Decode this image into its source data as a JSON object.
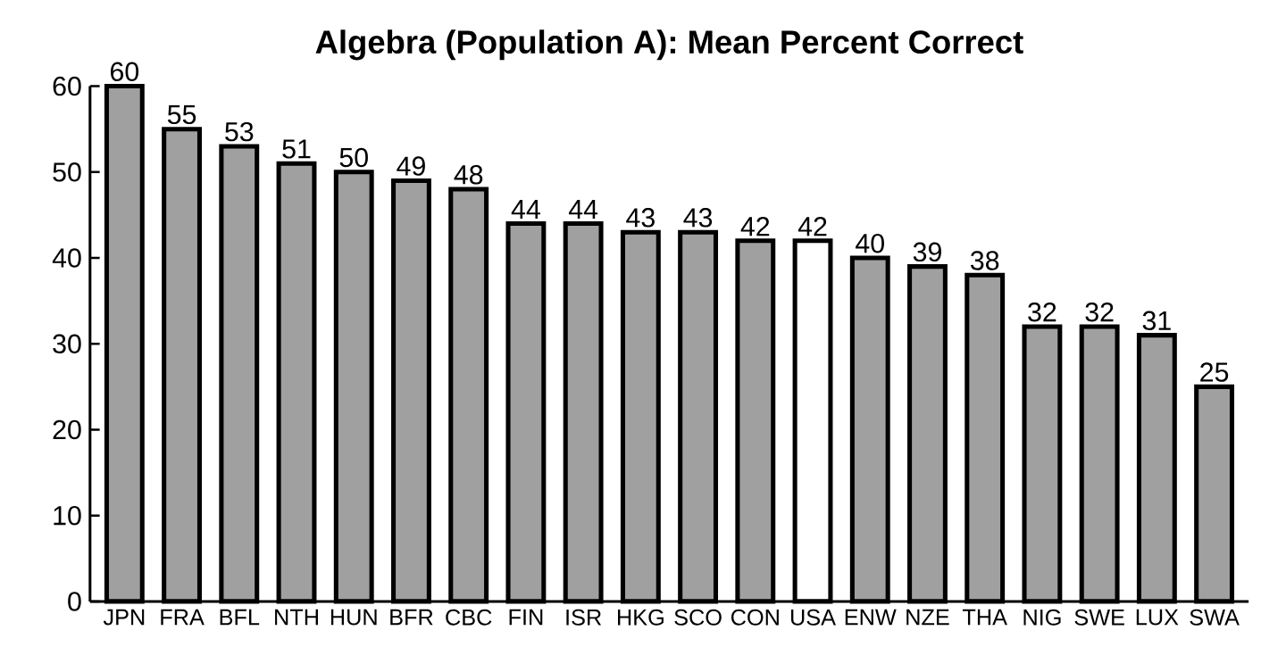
{
  "chart_data": {
    "type": "bar",
    "title": "Algebra (Population A): Mean Percent Correct",
    "categories": [
      "JPN",
      "FRA",
      "BFL",
      "NTH",
      "HUN",
      "BFR",
      "CBC",
      "FIN",
      "ISR",
      "HKG",
      "SCO",
      "CON",
      "USA",
      "ENW",
      "NZE",
      "THA",
      "NIG",
      "SWE",
      "LUX",
      "SWA"
    ],
    "values": [
      60,
      55,
      53,
      51,
      50,
      49,
      48,
      44,
      44,
      43,
      43,
      42,
      42,
      40,
      39,
      38,
      32,
      32,
      31,
      25
    ],
    "colors": [
      "#a0a0a0",
      "#a0a0a0",
      "#a0a0a0",
      "#a0a0a0",
      "#a0a0a0",
      "#a0a0a0",
      "#a0a0a0",
      "#a0a0a0",
      "#a0a0a0",
      "#a0a0a0",
      "#a0a0a0",
      "#a0a0a0",
      "#ffffff",
      "#a0a0a0",
      "#a0a0a0",
      "#a0a0a0",
      "#a0a0a0",
      "#a0a0a0",
      "#a0a0a0",
      "#a0a0a0"
    ],
    "ylim": [
      0,
      60
    ],
    "yticks": [
      0,
      10,
      20,
      30,
      40,
      50,
      60
    ],
    "data_labels": true,
    "grid": false
  }
}
